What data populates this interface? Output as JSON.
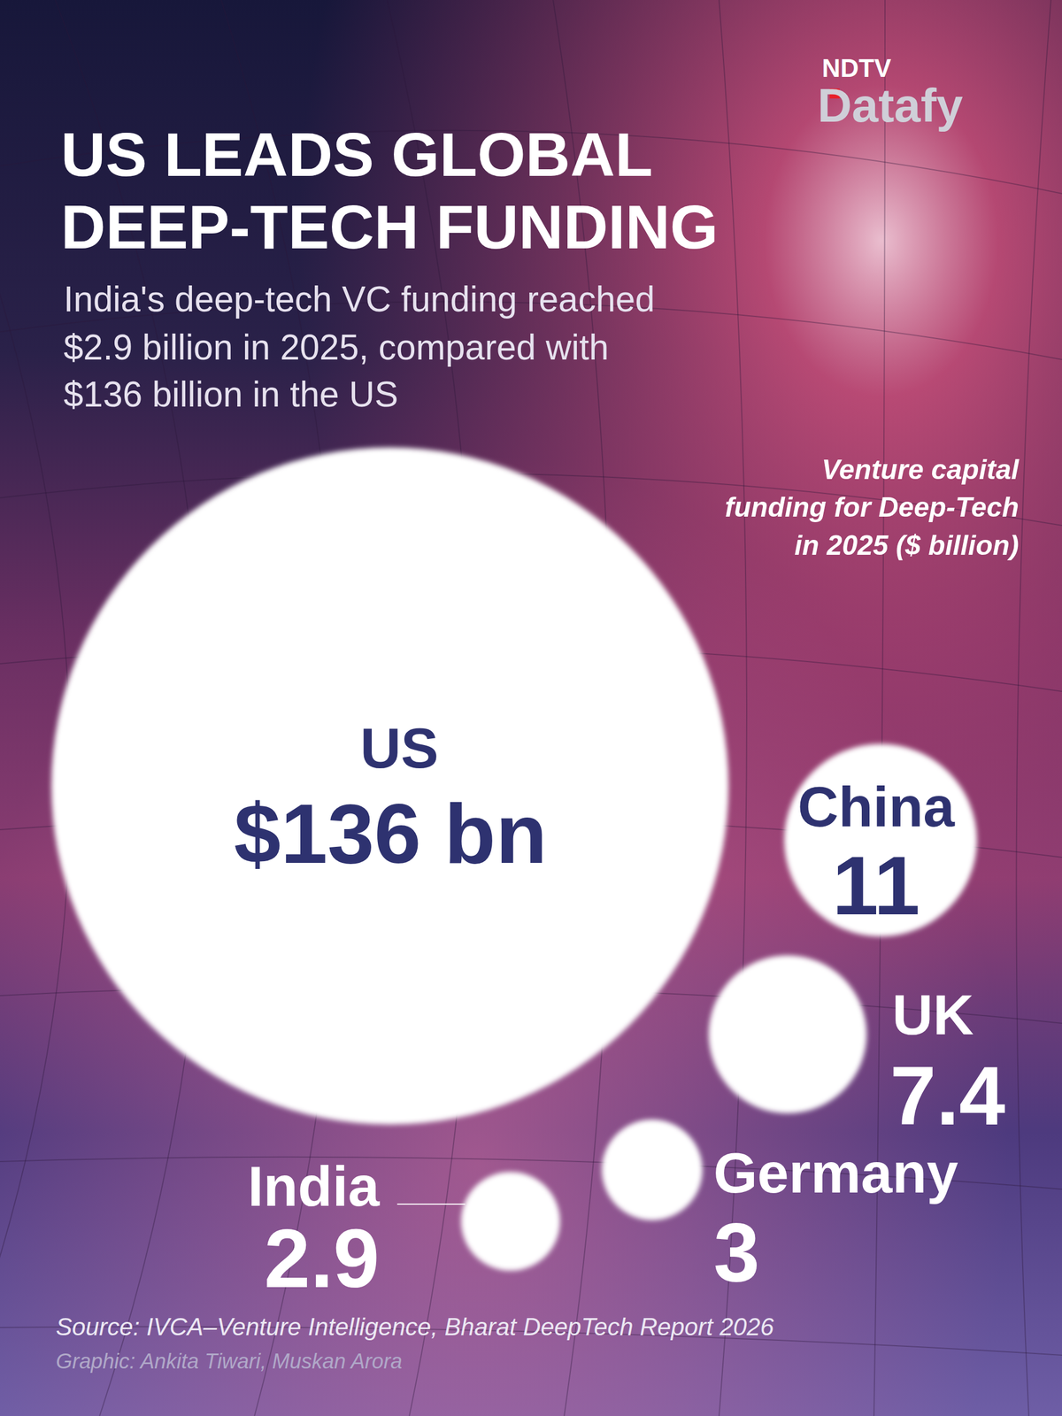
{
  "chart_data": {
    "type": "bubble",
    "title": [
      "US LEADS GLOBAL",
      "DEEP-TECH FUNDING"
    ],
    "subtitle": [
      "India's deep-tech VC funding reached",
      "$2.9 billion in 2025, compared with",
      "$136 billion in the US"
    ],
    "annotation": [
      "Venture capital",
      "funding for Deep-Tech",
      "in 2025 ($ billion)"
    ],
    "source": "Source: IVCA–Venture Intelligence, Bharat DeepTech Report 2026",
    "credit": "Graphic: Ankita Tiwari, Muskan Arora",
    "logo": [
      "NDTV",
      "Datafy"
    ],
    "categories": [
      "US",
      "China",
      "UK",
      "Germany",
      "India"
    ],
    "values": [
      136,
      11,
      7.4,
      3,
      2.9
    ],
    "value_labels": [
      "$136 bn",
      "11",
      "7.4",
      "3",
      "2.9"
    ],
    "data_labels": true
  }
}
